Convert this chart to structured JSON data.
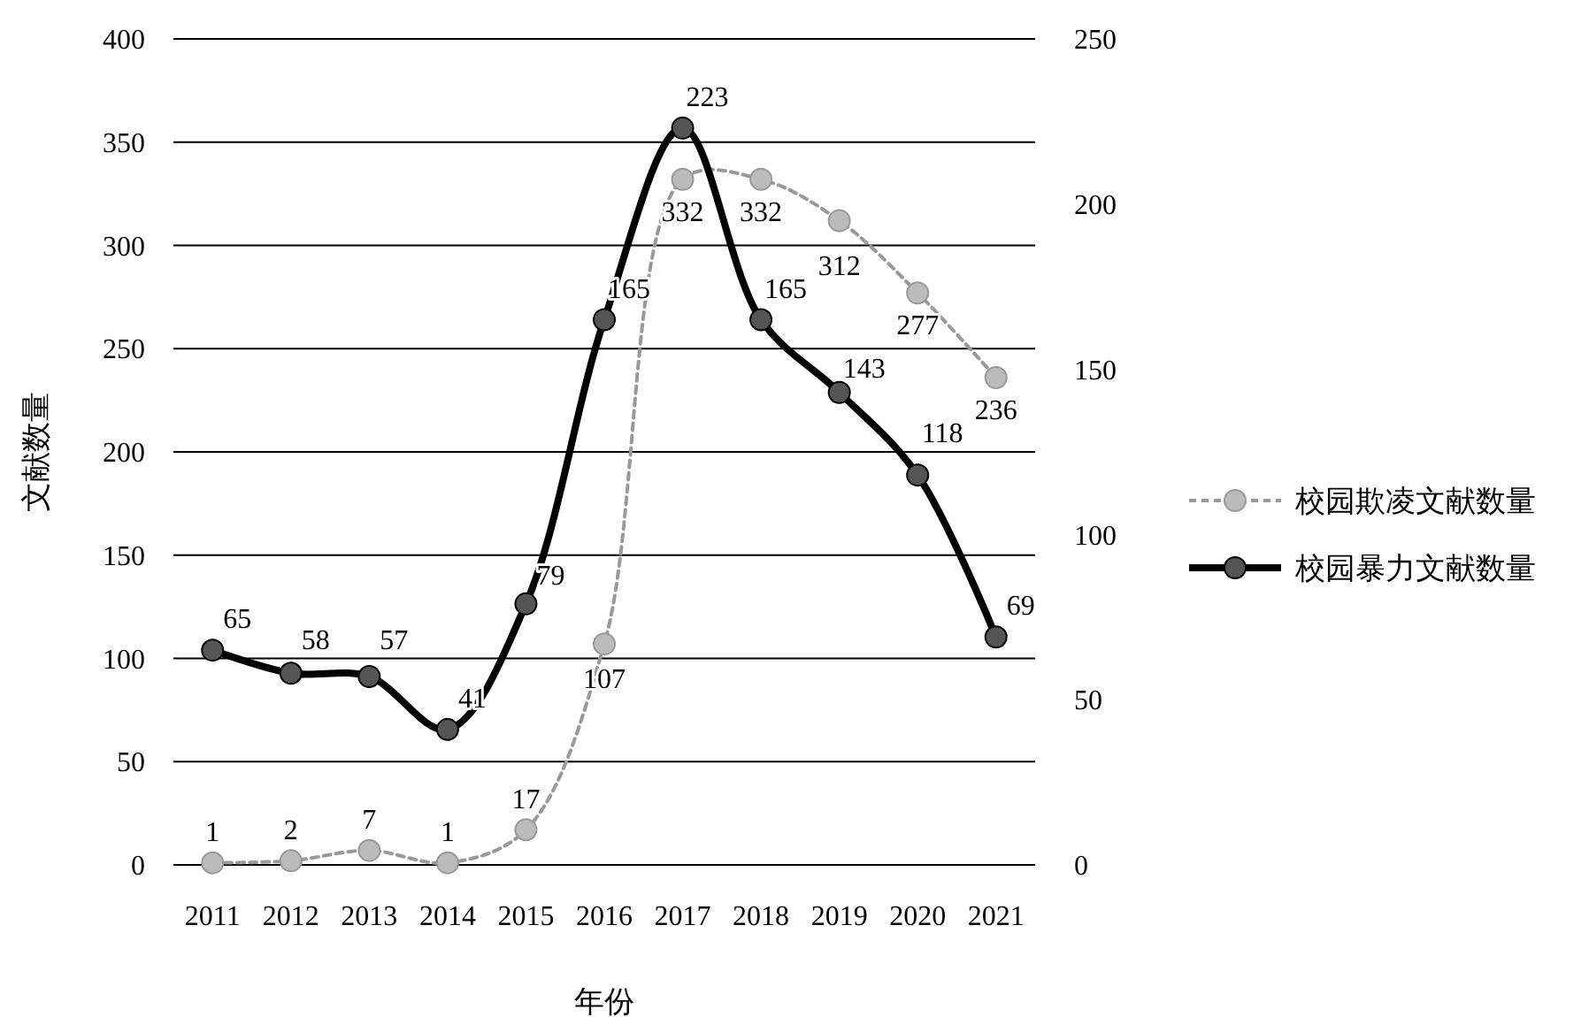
{
  "chart_data": {
    "type": "line",
    "xlabel": "年份",
    "ylabel": "文献数量",
    "categories": [
      "2011",
      "2012",
      "2013",
      "2014",
      "2015",
      "2016",
      "2017",
      "2018",
      "2019",
      "2020",
      "2021"
    ],
    "series": [
      {
        "name": "校园欺凌文献数量",
        "color": "#999999",
        "line_style": "dashed",
        "values": [
          1,
          2,
          7,
          1,
          17,
          107,
          332,
          332,
          312,
          277,
          236
        ]
      },
      {
        "name": "校园暴力文献数量",
        "color": "#000000",
        "line_style": "solid",
        "axis": "y2",
        "values": [
          65,
          58,
          57,
          41,
          79,
          165,
          223,
          165,
          143,
          118,
          69
        ]
      }
    ],
    "ylim": [
      0,
      400
    ],
    "yticks": [
      0,
      50,
      100,
      150,
      200,
      250,
      300,
      350,
      400
    ],
    "y2lim": [
      0,
      250
    ],
    "y2ticks": [
      0,
      50,
      100,
      150,
      200,
      250
    ],
    "grid": "y",
    "legend": "right",
    "marker": "circle",
    "data_labels": true
  }
}
